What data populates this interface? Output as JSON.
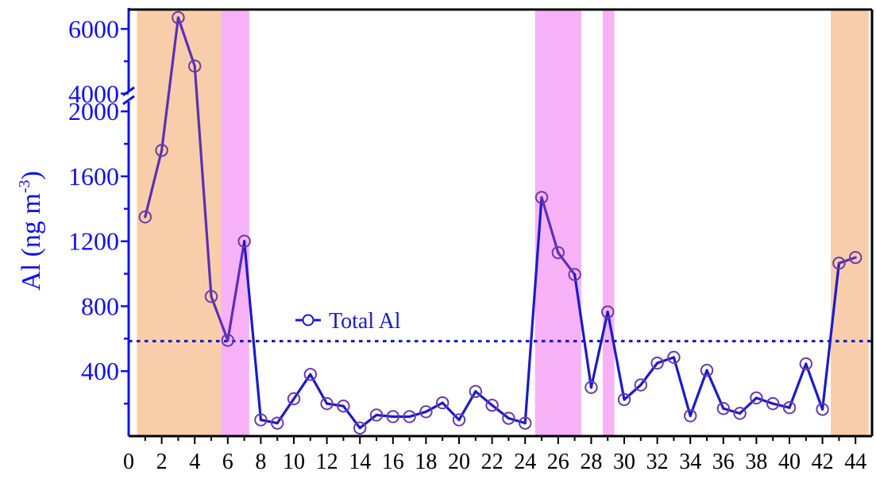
{
  "chart_data": {
    "type": "line",
    "ylabel": "Al (ng m",
    "ylabel_sup": "-3",
    "ylabel_close": ")",
    "xlim": [
      0,
      45
    ],
    "x_ticks": [
      0,
      2,
      4,
      6,
      8,
      10,
      12,
      14,
      16,
      18,
      20,
      22,
      24,
      26,
      28,
      30,
      32,
      34,
      36,
      38,
      40,
      42,
      44
    ],
    "y_axis": {
      "broken": true,
      "lower_range": [
        0,
        2050
      ],
      "upper_range": [
        3700,
        6600
      ],
      "lower_ticks": [
        400,
        800,
        1200,
        1600,
        2000
      ],
      "upper_ticks": [
        4000,
        6000
      ]
    },
    "reference_line": {
      "y": 585,
      "style": "dotted",
      "color": "#1a1acc"
    },
    "series": [
      {
        "name": "Total Al",
        "marker": "open-circle",
        "x": [
          1,
          2,
          3,
          4,
          5,
          6,
          7,
          8,
          9,
          10,
          11,
          12,
          13,
          14,
          15,
          16,
          17,
          18,
          19,
          20,
          21,
          22,
          23,
          24,
          25,
          26,
          27,
          28,
          29,
          30,
          31,
          32,
          33,
          34,
          35,
          36,
          37,
          38,
          39,
          40,
          41,
          42,
          43,
          44
        ],
        "values": [
          1350,
          1760,
          6350,
          4850,
          860,
          590,
          1200,
          100,
          80,
          230,
          380,
          200,
          185,
          50,
          130,
          120,
          120,
          150,
          205,
          100,
          275,
          190,
          110,
          80,
          1470,
          1130,
          995,
          300,
          765,
          225,
          315,
          450,
          485,
          125,
          405,
          170,
          140,
          235,
          200,
          175,
          445,
          165,
          1065,
          1100
        ]
      }
    ],
    "shaded_regions": [
      {
        "x": [
          0.5,
          5.6
        ],
        "color": "#f8ceaa"
      },
      {
        "x": [
          5.6,
          7.3
        ],
        "color": "#f7b2f7"
      },
      {
        "x": [
          24.6,
          27.4
        ],
        "color": "#f7b2f7"
      },
      {
        "x": [
          28.7,
          29.4
        ],
        "color": "#f7b2f7"
      },
      {
        "x": [
          42.5,
          44.8
        ],
        "color": "#f8ceaa"
      }
    ],
    "colors": {
      "axis_blue": "#1010ee",
      "line_blue": "#1a1acc",
      "line_purple": "#5a30b8",
      "marker_stroke": "#6a3aa8",
      "frame": "#000000"
    },
    "legend": {
      "label": "Total Al",
      "placement": "middle-left"
    }
  }
}
